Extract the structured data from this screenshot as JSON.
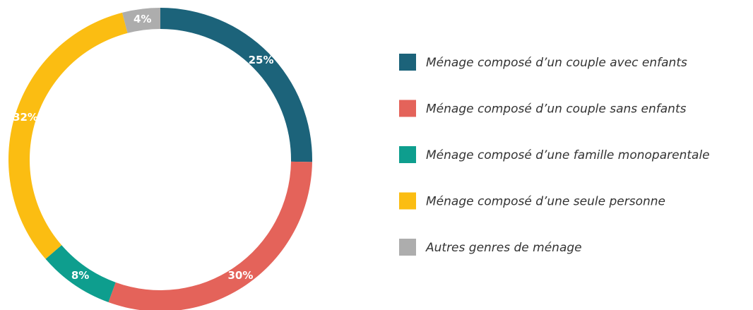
{
  "chart_data": {
    "type": "donut",
    "categories": [
      "Ménage composé d’un couple avec enfants",
      "Ménage composé d’un couple sans enfants",
      "Ménage composé d’une famille monoparentale",
      "Ménage composé d’une seule personne",
      "Autres genres de ménage"
    ],
    "values": [
      25,
      30,
      8,
      32,
      4
    ],
    "value_labels": [
      "25%",
      "30%",
      "8%",
      "32%",
      "4%"
    ],
    "colors": [
      "#1c637a",
      "#e4635a",
      "#0e9e8e",
      "#fbbd12",
      "#adadad"
    ],
    "legend": "right"
  }
}
